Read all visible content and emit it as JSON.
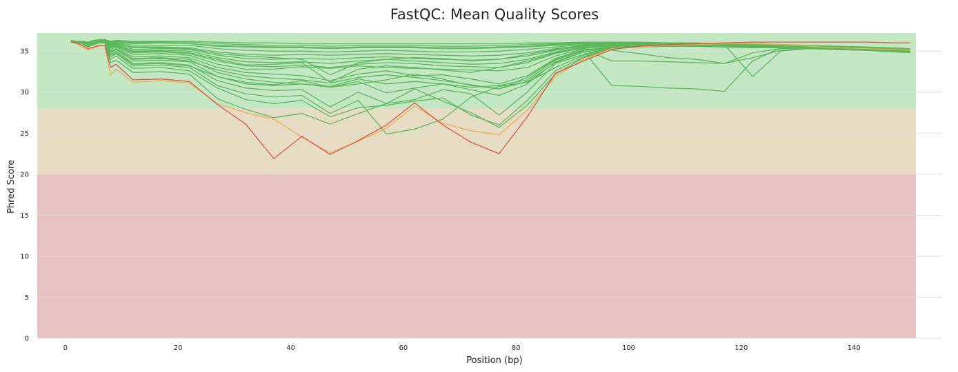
{
  "chart_data": {
    "type": "line",
    "title": "FastQC: Mean Quality Scores",
    "xlabel": "Position (bp)",
    "ylabel": "Phred Score",
    "xlim": [
      -5,
      151
    ],
    "ylim": [
      0,
      37.2
    ],
    "x_ticks": [
      0,
      20,
      40,
      60,
      80,
      100,
      120,
      140
    ],
    "y_ticks": [
      0,
      5,
      10,
      15,
      20,
      25,
      30,
      35
    ],
    "grid": "horizontal",
    "zones": [
      {
        "from": 28,
        "to": 37.2,
        "color": "#c3e6c3"
      },
      {
        "from": 20,
        "to": 28,
        "color": "#e6dcc3"
      },
      {
        "from": 0,
        "to": 20,
        "color": "#e6c3c3"
      }
    ],
    "colors": {
      "pass": "#5cb85c",
      "warn": "#f0ad4e",
      "fail": "#d9534f"
    },
    "x": [
      1,
      2,
      3,
      4,
      5,
      6,
      7,
      8,
      9,
      12,
      17,
      22,
      27,
      32,
      37,
      42,
      47,
      52,
      57,
      62,
      67,
      72,
      77,
      82,
      87,
      92,
      97,
      102,
      107,
      112,
      117,
      122,
      127,
      132,
      137,
      142,
      147,
      150
    ],
    "series": [
      {
        "status": "fail",
        "values": [
          36.1,
          36.0,
          35.7,
          35.3,
          35.5,
          35.7,
          35.7,
          33.0,
          33.4,
          31.5,
          31.6,
          31.3,
          28.5,
          26.1,
          21.9,
          24.6,
          22.4,
          24.1,
          26.0,
          28.7,
          26.0,
          23.9,
          22.5,
          27.0,
          32.3,
          33.8,
          35.2,
          35.6,
          35.8,
          35.9,
          36.0,
          36.1,
          36.1,
          36.1,
          36.1,
          36.1,
          36.0,
          36.0
        ]
      },
      {
        "status": "warn",
        "values": [
          36.1,
          35.9,
          35.5,
          35.1,
          35.4,
          35.6,
          35.7,
          32.1,
          32.8,
          31.2,
          31.4,
          31.1,
          28.6,
          27.5,
          26.7,
          24.5,
          22.6,
          24.0,
          25.6,
          28.3,
          26.2,
          25.3,
          24.8,
          27.8,
          31.9,
          34.0,
          35.3,
          35.5,
          35.7,
          35.8,
          35.9,
          35.9,
          35.8,
          35.6,
          35.4,
          35.3,
          35.2,
          35.1
        ]
      },
      {
        "status": "pass",
        "values": [
          36.2,
          36.1,
          35.9,
          35.5,
          35.8,
          36.0,
          36.0,
          33.6,
          33.9,
          32.4,
          32.5,
          32.2,
          29.2,
          27.9,
          26.9,
          27.4,
          26.1,
          27.4,
          28.6,
          30.4,
          28.9,
          27.5,
          25.7,
          28.4,
          32.2,
          34.2,
          35.3,
          35.6,
          35.7,
          35.8,
          35.8,
          35.8,
          35.6,
          35.4,
          35.2,
          35.1,
          34.9,
          34.8
        ]
      },
      {
        "status": "pass",
        "values": [
          36.2,
          36.1,
          35.9,
          35.6,
          35.8,
          36.0,
          36.1,
          34.0,
          34.4,
          32.9,
          33.0,
          32.6,
          30.5,
          29.1,
          28.6,
          29.0,
          27.0,
          28.1,
          28.4,
          28.9,
          29.3,
          27.2,
          26.0,
          29.0,
          32.6,
          34.3,
          35.4,
          35.7,
          35.8,
          35.9,
          35.9,
          35.9,
          35.7,
          35.5,
          35.3,
          35.2,
          35.0,
          34.9
        ]
      },
      {
        "status": "pass",
        "values": [
          36.2,
          36.1,
          36.0,
          35.7,
          35.9,
          36.1,
          36.1,
          34.3,
          34.7,
          33.2,
          33.3,
          33.0,
          30.8,
          29.8,
          29.4,
          29.6,
          27.4,
          29.0,
          24.9,
          25.5,
          26.7,
          29.4,
          30.7,
          31.2,
          33.0,
          34.5,
          35.4,
          35.6,
          35.8,
          35.9,
          35.9,
          35.9,
          35.8,
          35.6,
          35.4,
          35.2,
          35.1,
          35.0
        ]
      },
      {
        "status": "pass",
        "values": [
          36.2,
          36.1,
          36.0,
          35.7,
          35.9,
          36.1,
          36.1,
          34.6,
          35.0,
          33.5,
          33.6,
          33.3,
          31.4,
          30.5,
          30.2,
          30.3,
          28.2,
          30.0,
          28.6,
          29.1,
          30.3,
          29.8,
          27.2,
          30.0,
          33.5,
          34.6,
          35.5,
          35.7,
          35.8,
          35.9,
          35.9,
          35.9,
          35.8,
          35.6,
          35.4,
          35.3,
          35.1,
          35.0
        ]
      },
      {
        "status": "pass",
        "values": [
          36.2,
          36.1,
          36.0,
          35.8,
          36.0,
          36.1,
          36.2,
          34.8,
          35.2,
          33.8,
          33.9,
          33.7,
          31.9,
          31.0,
          30.8,
          31.0,
          30.6,
          31.3,
          29.9,
          30.5,
          31.0,
          30.3,
          29.6,
          31.0,
          33.7,
          35.0,
          30.8,
          30.7,
          30.5,
          30.4,
          30.1,
          33.8,
          35.4,
          35.4,
          35.3,
          35.2,
          35.1,
          35.0
        ]
      },
      {
        "status": "pass",
        "values": [
          36.2,
          36.1,
          36.0,
          35.8,
          36.0,
          36.1,
          36.2,
          35.0,
          35.3,
          34.1,
          34.2,
          34.0,
          32.4,
          31.6,
          31.2,
          31.0,
          30.7,
          31.6,
          31.0,
          31.3,
          31.0,
          30.6,
          30.8,
          31.5,
          33.9,
          35.1,
          35.3,
          35.5,
          35.6,
          35.7,
          35.8,
          31.9,
          35.0,
          35.3,
          35.2,
          35.1,
          35.0,
          34.9
        ]
      },
      {
        "status": "pass",
        "values": [
          36.2,
          36.1,
          36.0,
          35.8,
          36.0,
          36.2,
          36.2,
          35.2,
          35.5,
          34.3,
          34.4,
          34.2,
          33.0,
          32.4,
          32.2,
          32.0,
          31.4,
          32.2,
          32.6,
          32.0,
          32.1,
          31.6,
          31.0,
          32.0,
          34.1,
          35.2,
          33.8,
          33.8,
          33.7,
          33.6,
          33.5,
          34.2,
          35.1,
          35.3,
          35.2,
          35.1,
          35.0,
          34.9
        ]
      },
      {
        "status": "pass",
        "values": [
          36.2,
          36.1,
          36.0,
          35.9,
          36.0,
          36.2,
          36.2,
          35.4,
          35.6,
          34.6,
          34.7,
          34.5,
          33.4,
          32.8,
          32.8,
          33.1,
          32.9,
          33.2,
          33.0,
          32.9,
          32.8,
          32.7,
          32.6,
          33.0,
          34.4,
          35.3,
          35.1,
          34.7,
          34.2,
          34.0,
          33.5,
          34.8,
          35.3,
          35.3,
          35.2,
          35.1,
          35.0,
          34.9
        ]
      },
      {
        "status": "pass",
        "values": [
          36.2,
          36.1,
          36.1,
          35.9,
          36.1,
          36.2,
          36.2,
          35.5,
          35.7,
          34.8,
          34.9,
          34.7,
          33.8,
          33.2,
          33.1,
          33.3,
          33.0,
          33.4,
          33.6,
          33.5,
          33.2,
          33.1,
          33.0,
          33.6,
          34.7,
          35.4,
          35.5,
          35.6,
          35.6,
          35.6,
          35.5,
          35.5,
          35.5,
          35.4,
          35.3,
          35.2,
          35.1,
          35.0
        ]
      },
      {
        "status": "pass",
        "values": [
          36.2,
          36.1,
          36.1,
          35.9,
          36.1,
          36.2,
          36.3,
          35.6,
          35.8,
          35.0,
          35.1,
          35.0,
          34.2,
          33.7,
          33.6,
          33.7,
          33.5,
          33.8,
          34.0,
          33.8,
          33.6,
          33.4,
          33.5,
          34.0,
          34.9,
          35.5,
          35.6,
          35.6,
          35.6,
          35.6,
          35.6,
          35.5,
          35.5,
          35.4,
          35.3,
          35.2,
          35.1,
          35.0
        ]
      },
      {
        "status": "pass",
        "values": [
          36.2,
          36.1,
          36.1,
          35.9,
          36.1,
          36.2,
          36.3,
          35.7,
          35.9,
          35.2,
          35.3,
          35.2,
          34.5,
          34.1,
          34.0,
          34.1,
          34.0,
          34.2,
          34.3,
          34.1,
          34.0,
          33.9,
          34.0,
          34.4,
          35.1,
          35.6,
          35.7,
          35.7,
          35.7,
          35.7,
          35.6,
          35.6,
          35.5,
          35.4,
          35.3,
          35.2,
          35.1,
          35.0
        ]
      },
      {
        "status": "pass",
        "values": [
          36.2,
          36.2,
          36.1,
          36.0,
          36.1,
          36.2,
          36.3,
          35.8,
          36.0,
          35.5,
          35.5,
          35.4,
          34.9,
          34.6,
          34.5,
          34.6,
          34.5,
          34.6,
          34.7,
          34.6,
          34.5,
          34.4,
          34.5,
          34.8,
          35.3,
          35.7,
          35.8,
          35.8,
          35.8,
          35.7,
          35.7,
          35.6,
          35.5,
          35.4,
          35.3,
          35.2,
          35.1,
          35.0
        ]
      },
      {
        "status": "pass",
        "values": [
          36.2,
          36.2,
          36.1,
          36.0,
          36.2,
          36.3,
          36.3,
          35.9,
          36.1,
          35.7,
          35.7,
          35.7,
          35.3,
          35.1,
          35.0,
          35.0,
          34.9,
          35.0,
          35.1,
          35.0,
          34.9,
          34.9,
          35.0,
          35.2,
          35.5,
          35.8,
          35.9,
          35.9,
          35.8,
          35.8,
          35.7,
          35.6,
          35.6,
          35.5,
          35.4,
          35.3,
          35.2,
          35.1
        ]
      },
      {
        "status": "pass",
        "values": [
          36.2,
          36.2,
          36.2,
          36.0,
          36.2,
          36.3,
          36.4,
          36.0,
          36.2,
          35.9,
          36.0,
          35.9,
          35.6,
          35.5,
          35.4,
          35.4,
          35.3,
          35.4,
          35.4,
          35.4,
          35.3,
          35.3,
          35.4,
          35.5,
          35.7,
          35.9,
          36.0,
          36.0,
          35.9,
          35.9,
          35.8,
          35.7,
          35.6,
          35.5,
          35.4,
          35.3,
          35.2,
          35.1
        ]
      },
      {
        "status": "pass",
        "values": [
          36.3,
          36.2,
          36.2,
          36.1,
          36.2,
          36.3,
          36.4,
          36.1,
          36.2,
          36.1,
          36.1,
          36.1,
          35.9,
          35.8,
          35.7,
          35.7,
          35.6,
          35.7,
          35.7,
          35.7,
          35.6,
          35.6,
          35.7,
          35.8,
          35.9,
          36.0,
          36.0,
          36.0,
          36.0,
          35.9,
          35.9,
          35.8,
          35.7,
          35.6,
          35.5,
          35.4,
          35.3,
          35.2
        ]
      },
      {
        "status": "pass",
        "values": [
          36.3,
          36.2,
          36.2,
          36.1,
          36.3,
          36.4,
          36.4,
          36.2,
          36.3,
          36.2,
          36.2,
          36.2,
          36.1,
          36.0,
          36.0,
          35.9,
          35.9,
          35.9,
          35.9,
          35.9,
          35.9,
          35.9,
          35.9,
          36.0,
          36.0,
          36.1,
          36.1,
          36.1,
          36.0,
          36.0,
          35.9,
          35.8,
          35.8,
          35.7,
          35.6,
          35.5,
          35.4,
          35.3
        ]
      },
      {
        "status": "pass",
        "values": [
          36.2,
          36.1,
          36.0,
          35.8,
          36.0,
          36.1,
          36.2,
          34.9,
          35.3,
          34.0,
          34.1,
          33.8,
          32.7,
          32.0,
          31.7,
          31.5,
          31.1,
          31.8,
          32.1,
          31.8,
          31.4,
          30.9,
          30.4,
          31.8,
          34.0,
          35.2,
          35.4,
          35.5,
          35.6,
          35.6,
          35.6,
          35.5,
          35.4,
          35.3,
          35.2,
          35.1,
          35.0,
          34.9
        ]
      },
      {
        "status": "pass",
        "values": [
          36.2,
          36.1,
          36.0,
          35.7,
          35.9,
          36.1,
          36.1,
          34.5,
          34.8,
          33.4,
          33.5,
          33.2,
          31.9,
          31.2,
          30.9,
          31.4,
          30.6,
          31.0,
          31.5,
          32.2,
          31.6,
          30.8,
          30.4,
          31.3,
          33.6,
          34.9,
          35.4,
          35.6,
          35.7,
          35.8,
          35.8,
          35.7,
          35.6,
          35.5,
          35.3,
          35.2,
          35.1,
          35.0
        ]
      },
      {
        "status": "pass",
        "values": [
          36.2,
          36.1,
          36.1,
          35.9,
          36.1,
          36.2,
          36.2,
          35.5,
          35.8,
          34.9,
          35.0,
          34.8,
          34.0,
          33.3,
          33.4,
          33.6,
          31.2,
          32.8,
          33.2,
          33.0,
          32.7,
          32.4,
          33.0,
          33.8,
          34.8,
          35.4,
          35.6,
          35.6,
          35.6,
          35.6,
          35.5,
          35.4,
          35.4,
          35.3,
          35.2,
          35.1,
          35.0,
          34.9
        ]
      },
      {
        "status": "pass",
        "values": [
          36.2,
          36.2,
          36.1,
          36.0,
          36.2,
          36.3,
          36.3,
          35.8,
          36.0,
          35.4,
          35.4,
          35.3,
          34.7,
          34.4,
          34.2,
          34.0,
          32.1,
          33.6,
          34.0,
          34.2,
          34.1,
          33.8,
          34.0,
          34.6,
          35.2,
          35.7,
          35.8,
          35.8,
          35.7,
          35.7,
          35.6,
          35.5,
          35.5,
          35.4,
          35.3,
          35.2,
          35.1,
          35.0
        ]
      },
      {
        "status": "pass",
        "values": [
          36.3,
          36.2,
          36.2,
          36.1,
          36.2,
          36.3,
          36.4,
          36.1,
          36.2,
          36.0,
          36.0,
          35.9,
          35.7,
          35.6,
          35.5,
          35.5,
          35.4,
          35.5,
          35.5,
          35.5,
          35.4,
          35.4,
          35.5,
          35.6,
          35.8,
          35.9,
          36.0,
          36.0,
          35.9,
          35.9,
          35.8,
          35.7,
          35.6,
          35.5,
          35.4,
          35.3,
          35.2,
          35.1
        ]
      }
    ]
  }
}
